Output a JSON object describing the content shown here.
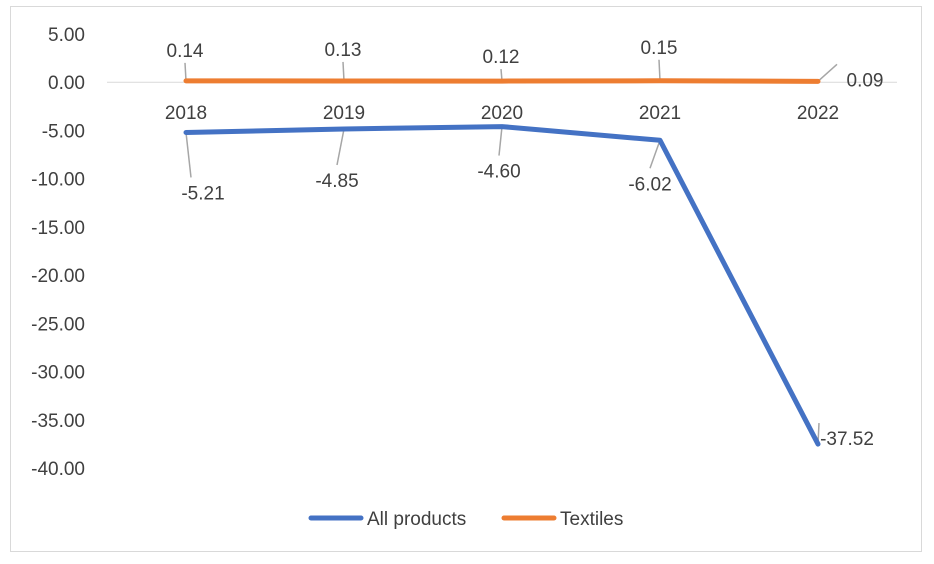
{
  "chart_data": {
    "type": "line",
    "title": "",
    "xlabel": "",
    "ylabel": "",
    "categories": [
      "2018",
      "2019",
      "2020",
      "2021",
      "2022"
    ],
    "ylim": [
      -40,
      5
    ],
    "yticks": [
      5,
      0,
      -5,
      -10,
      -15,
      -20,
      -25,
      -30,
      -35,
      -40
    ],
    "ytick_labels": [
      "5.00",
      "0.00",
      "-5.00",
      "-10.00",
      "-15.00",
      "-20.00",
      "-25.00",
      "-30.00",
      "-35.00",
      "-40.00"
    ],
    "grid": false,
    "legend_position": "bottom",
    "series": [
      {
        "name": "All products",
        "color": "#4472c4",
        "values": [
          -5.21,
          -4.85,
          -4.6,
          -6.02,
          -37.52
        ],
        "labels": [
          "-5.21",
          "-4.85",
          "-4.60",
          "-6.02",
          "-37.52"
        ]
      },
      {
        "name": "Textiles",
        "color": "#ed7d31",
        "values": [
          0.14,
          0.13,
          0.12,
          0.15,
          0.09
        ],
        "labels": [
          "0.14",
          "0.13",
          "0.12",
          "0.15",
          "0.09"
        ]
      }
    ]
  }
}
